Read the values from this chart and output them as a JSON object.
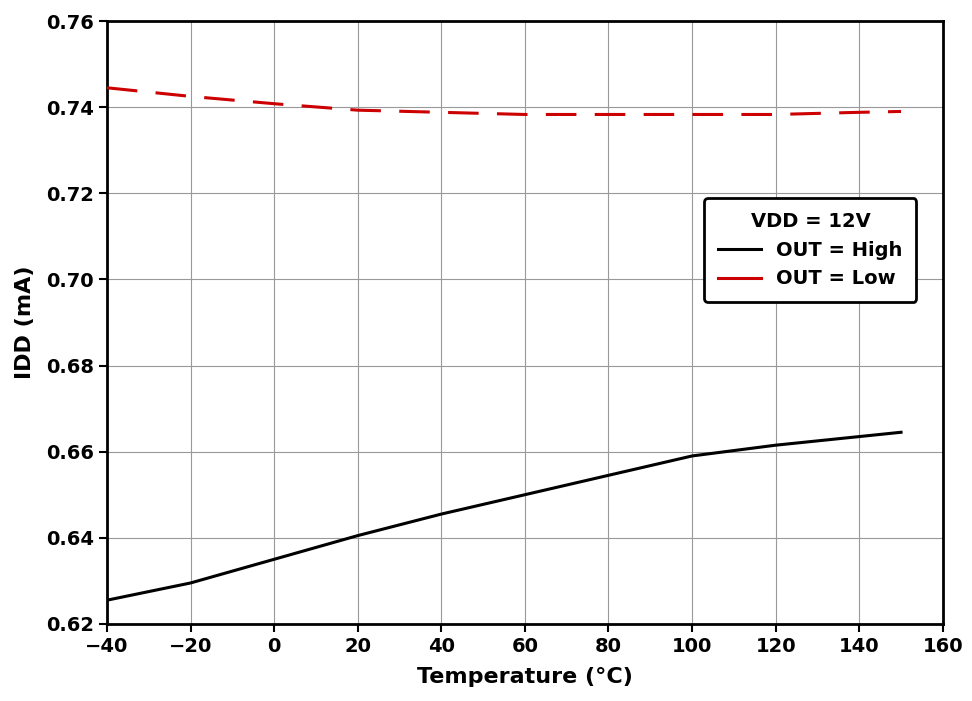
{
  "xlabel": "Temperature (°C)",
  "ylabel": "IDD (mA)",
  "xlim": [
    -40,
    160
  ],
  "ylim": [
    0.62,
    0.76
  ],
  "xticks": [
    -40,
    -20,
    0,
    20,
    40,
    60,
    80,
    100,
    120,
    140,
    160
  ],
  "yticks": [
    0.62,
    0.64,
    0.66,
    0.68,
    0.7,
    0.72,
    0.74,
    0.76
  ],
  "black_line": {
    "x": [
      -40,
      -20,
      0,
      20,
      40,
      60,
      80,
      100,
      120,
      140,
      150
    ],
    "y": [
      0.6255,
      0.6295,
      0.635,
      0.6405,
      0.6455,
      0.65,
      0.6545,
      0.659,
      0.6615,
      0.6635,
      0.6645
    ],
    "color": "#000000",
    "linewidth": 2.2,
    "label": "OUT = High"
  },
  "red_line": {
    "x": [
      -40,
      -20,
      0,
      20,
      40,
      60,
      80,
      100,
      120,
      140,
      150
    ],
    "y": [
      0.7445,
      0.7425,
      0.7408,
      0.7393,
      0.7388,
      0.7383,
      0.7383,
      0.7383,
      0.7383,
      0.7388,
      0.739
    ],
    "color": "#cc0000",
    "linewidth": 2.2,
    "label": "OUT = Low"
  },
  "legend_title": "VDD = 12V",
  "background_color": "#ffffff",
  "grid_color": "#999999",
  "spine_linewidth": 2.0,
  "tick_fontsize": 14,
  "label_fontsize": 16
}
